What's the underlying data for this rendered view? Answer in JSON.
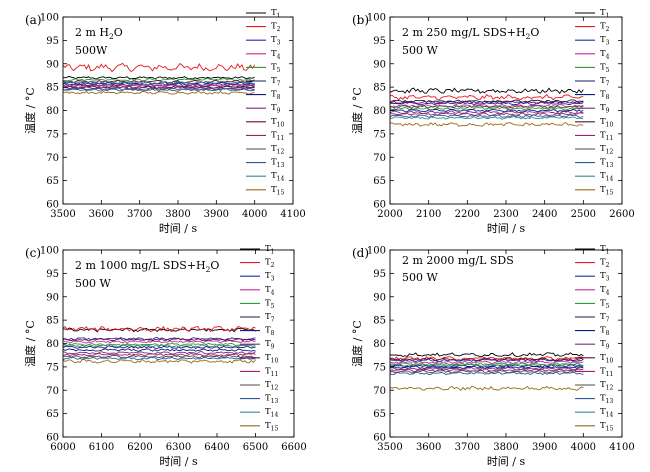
{
  "series_colors": [
    "#000000",
    "#e41a1c",
    "#1f2fa8",
    "#cc2a9c",
    "#2e9a34",
    "#1a1a5e",
    "#0d1a8c",
    "#7a2e8c",
    "#6b0d3a",
    "#a0226a",
    "#4d4d4d",
    "#2c5aa0",
    "#3a8a8a",
    "#9a6a1a",
    "#2aa82a"
  ],
  "chart_data": [
    {
      "type": "line",
      "panel_tag": "(a)",
      "annotations": [
        "2 m H",
        "2",
        "O",
        "500W"
      ],
      "xlabel": "时间 / s",
      "ylabel": "温度 / °C",
      "xlim": [
        3500,
        4100
      ],
      "x_ticks": [
        "3500",
        "3600",
        "3700",
        "3800",
        "3900",
        "4000",
        "4100"
      ],
      "ylim": [
        60,
        100
      ],
      "y_ticks": [
        "60",
        "65",
        "70",
        "75",
        "80",
        "85",
        "90",
        "95",
        "100"
      ],
      "x_range": [
        3500,
        4000
      ],
      "legend": [
        "T",
        "1",
        "T",
        "2",
        "T",
        "3",
        "T",
        "4",
        "T",
        "5",
        "T",
        "7",
        "T",
        "8",
        "T",
        "9",
        "T",
        "10",
        "T",
        "11",
        "T",
        "12",
        "T",
        "13",
        "T",
        "14",
        "T",
        "15"
      ],
      "legend_labels": [
        "T1",
        "T2",
        "T3",
        "T4",
        "T5",
        "T7",
        "T8",
        "T9",
        "T10",
        "T11",
        "T12",
        "T13",
        "T14",
        "T15"
      ],
      "series": [
        {
          "name": "T1",
          "mean": 87.0,
          "noise": 0.2
        },
        {
          "name": "T2",
          "mean": 89.2,
          "noise": 0.6
        },
        {
          "name": "T3",
          "mean": 85.6,
          "noise": 0.2
        },
        {
          "name": "T4",
          "mean": 85.2,
          "noise": 0.2
        },
        {
          "name": "T5",
          "mean": 86.6,
          "noise": 0.2
        },
        {
          "name": "T7",
          "mean": 85.0,
          "noise": 0.2
        },
        {
          "name": "T8",
          "mean": 85.8,
          "noise": 0.2
        },
        {
          "name": "T9",
          "mean": 84.8,
          "noise": 0.2
        },
        {
          "name": "T10",
          "mean": 86.2,
          "noise": 0.2
        },
        {
          "name": "T11",
          "mean": 85.4,
          "noise": 0.2
        },
        {
          "name": "T12",
          "mean": 84.6,
          "noise": 0.2
        },
        {
          "name": "T13",
          "mean": 84.4,
          "noise": 0.2
        },
        {
          "name": "T14",
          "mean": 86.0,
          "noise": 0.2
        },
        {
          "name": "T15",
          "mean": 83.8,
          "noise": 0.2
        }
      ]
    },
    {
      "type": "line",
      "panel_tag": "(b)",
      "annotations": [
        "2 m    250 mg/L SDS+H",
        "2",
        "O",
        "500 W"
      ],
      "xlabel": "时间 / s",
      "ylabel": "温度 / °C",
      "xlim": [
        2000,
        2600
      ],
      "x_ticks": [
        "2000",
        "2100",
        "2200",
        "2300",
        "2400",
        "2500",
        "2600"
      ],
      "ylim": [
        60,
        100
      ],
      "y_ticks": [
        "60",
        "65",
        "70",
        "75",
        "80",
        "85",
        "90",
        "95",
        "100"
      ],
      "x_range": [
        2000,
        2500
      ],
      "legend": [
        "T",
        "1",
        "T",
        "2",
        "T",
        "3",
        "T",
        "4",
        "T",
        "5",
        "T",
        "7",
        "T",
        "8",
        "T",
        "9",
        "T",
        "10",
        "T",
        "11",
        "T",
        "12",
        "T",
        "13",
        "T",
        "14",
        "T",
        "15"
      ],
      "legend_labels": [
        "T1",
        "T2",
        "T3",
        "T4",
        "T5",
        "T7",
        "T8",
        "T9",
        "T10",
        "T11",
        "T12",
        "T13",
        "T14",
        "T15"
      ],
      "series": [
        {
          "name": "T1",
          "mean": 84.2,
          "noise": 0.4
        },
        {
          "name": "T2",
          "mean": 82.8,
          "noise": 0.4
        },
        {
          "name": "T3",
          "mean": 81.5,
          "noise": 0.2
        },
        {
          "name": "T4",
          "mean": 81.0,
          "noise": 0.2
        },
        {
          "name": "T5",
          "mean": 80.4,
          "noise": 0.2
        },
        {
          "name": "T7",
          "mean": 82.0,
          "noise": 0.2
        },
        {
          "name": "T8",
          "mean": 80.0,
          "noise": 0.2
        },
        {
          "name": "T9",
          "mean": 79.6,
          "noise": 0.2
        },
        {
          "name": "T10",
          "mean": 81.8,
          "noise": 0.2
        },
        {
          "name": "T11",
          "mean": 79.2,
          "noise": 0.2
        },
        {
          "name": "T12",
          "mean": 80.8,
          "noise": 0.2
        },
        {
          "name": "T13",
          "mean": 78.8,
          "noise": 0.2
        },
        {
          "name": "T14",
          "mean": 78.4,
          "noise": 0.2
        },
        {
          "name": "T15",
          "mean": 77.0,
          "noise": 0.3
        }
      ]
    },
    {
      "type": "line",
      "panel_tag": "(c)",
      "annotations": [
        "2 m    1000 mg/L SDS+H",
        "2",
        "O",
        "500 W"
      ],
      "xlabel": "时间 / s",
      "ylabel": "温度 / °C",
      "xlim": [
        6000,
        6600
      ],
      "x_ticks": [
        "6000",
        "6100",
        "6200",
        "6300",
        "6400",
        "6500",
        "6600"
      ],
      "ylim": [
        60,
        100
      ],
      "y_ticks": [
        "60",
        "65",
        "70",
        "75",
        "80",
        "85",
        "90",
        "95",
        "100"
      ],
      "x_range": [
        6000,
        6500
      ],
      "legend": [
        "T",
        "1",
        "T",
        "2",
        "T",
        "3",
        "T",
        "4",
        "T",
        "5",
        "T",
        "7",
        "T",
        "8",
        "T",
        "9",
        "T",
        "10",
        "T",
        "11",
        "T",
        "12",
        "T",
        "13",
        "T",
        "14",
        "T",
        "15"
      ],
      "legend_labels": [
        "T1",
        "T2",
        "T3",
        "T4",
        "T5",
        "T7",
        "T8",
        "T9",
        "T10",
        "T11",
        "T12",
        "T13",
        "T14",
        "T15"
      ],
      "series": [
        {
          "name": "T1",
          "mean": 82.9,
          "noise": 0.3
        },
        {
          "name": "T2",
          "mean": 83.1,
          "noise": 0.4
        },
        {
          "name": "T3",
          "mean": 81.0,
          "noise": 0.2
        },
        {
          "name": "T4",
          "mean": 80.4,
          "noise": 0.2
        },
        {
          "name": "T5",
          "mean": 79.8,
          "noise": 0.2
        },
        {
          "name": "T7",
          "mean": 79.2,
          "noise": 0.2
        },
        {
          "name": "T8",
          "mean": 78.6,
          "noise": 0.2
        },
        {
          "name": "T9",
          "mean": 78.0,
          "noise": 0.2
        },
        {
          "name": "T10",
          "mean": 80.8,
          "noise": 0.2
        },
        {
          "name": "T11",
          "mean": 77.6,
          "noise": 0.2
        },
        {
          "name": "T12",
          "mean": 77.2,
          "noise": 0.2
        },
        {
          "name": "T13",
          "mean": 76.8,
          "noise": 0.2
        },
        {
          "name": "T14",
          "mean": 79.5,
          "noise": 0.2
        },
        {
          "name": "T15",
          "mean": 76.2,
          "noise": 0.3
        }
      ]
    },
    {
      "type": "line",
      "panel_tag": "(d)",
      "annotations": [
        "2 m    2000 mg/L SDS",
        "500 W"
      ],
      "xlabel": "时间 / s",
      "ylabel": "温度 / °C",
      "xlim": [
        3500,
        4100
      ],
      "x_ticks": [
        "3500",
        "3600",
        "3700",
        "3800",
        "3900",
        "4000",
        "4100"
      ],
      "ylim": [
        60,
        100
      ],
      "y_ticks": [
        "60",
        "65",
        "70",
        "75",
        "80",
        "85",
        "90",
        "95",
        "100"
      ],
      "x_range": [
        3500,
        4000
      ],
      "legend": [
        "T",
        "1",
        "T",
        "2",
        "T",
        "3",
        "T",
        "4",
        "T",
        "5",
        "T",
        "7",
        "T",
        "8",
        "T",
        "9",
        "T",
        "10",
        "T",
        "11",
        "T",
        "12",
        "T",
        "13",
        "T",
        "14",
        "T",
        "15"
      ],
      "legend_labels": [
        "T1",
        "T2",
        "T3",
        "T4",
        "T5",
        "T7",
        "T8",
        "T9",
        "T10",
        "T11",
        "T12",
        "T13",
        "T14",
        "T15"
      ],
      "series": [
        {
          "name": "T1",
          "mean": 77.6,
          "noise": 0.3
        },
        {
          "name": "T2",
          "mean": 76.8,
          "noise": 0.3
        },
        {
          "name": "T3",
          "mean": 76.4,
          "noise": 0.2
        },
        {
          "name": "T4",
          "mean": 76.0,
          "noise": 0.2
        },
        {
          "name": "T5",
          "mean": 75.6,
          "noise": 0.2
        },
        {
          "name": "T7",
          "mean": 75.2,
          "noise": 0.2
        },
        {
          "name": "T8",
          "mean": 74.9,
          "noise": 0.2
        },
        {
          "name": "T9",
          "mean": 74.6,
          "noise": 0.2
        },
        {
          "name": "T10",
          "mean": 76.6,
          "noise": 0.2
        },
        {
          "name": "T11",
          "mean": 74.3,
          "noise": 0.2
        },
        {
          "name": "T12",
          "mean": 74.0,
          "noise": 0.2
        },
        {
          "name": "T13",
          "mean": 73.6,
          "noise": 0.2
        },
        {
          "name": "T14",
          "mean": 75.4,
          "noise": 0.2
        },
        {
          "name": "T15",
          "mean": 70.4,
          "noise": 0.3
        }
      ]
    }
  ]
}
